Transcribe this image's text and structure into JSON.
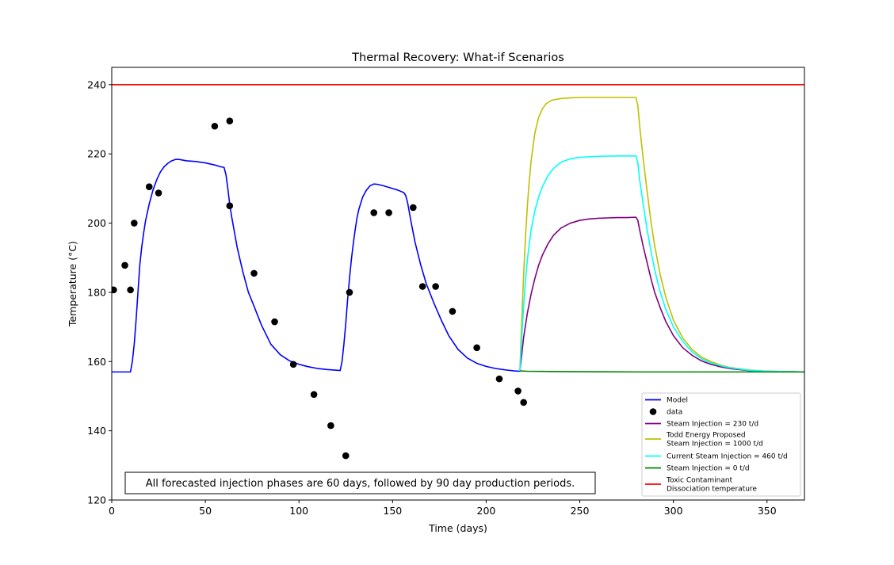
{
  "chart_data": {
    "type": "line",
    "title": "Thermal Recovery: What-if Scenarios",
    "xlabel": "Time (days)",
    "ylabel": "Temperature (°C)",
    "xlim": [
      0,
      370
    ],
    "ylim": [
      120,
      245
    ],
    "xticks": [
      0,
      50,
      100,
      150,
      200,
      250,
      300,
      350
    ],
    "yticks": [
      120,
      140,
      160,
      180,
      200,
      220,
      240
    ],
    "grid": false,
    "legend_position": "lower-right",
    "annotation": "All forecasted injection phases are 60 days, followed by 90 day production periods.",
    "series": [
      {
        "name": "Model",
        "kind": "line",
        "color": "#0000ff",
        "x": [
          0,
          5,
          10,
          11,
          12,
          13,
          14,
          15,
          16,
          17,
          18,
          20,
          22,
          24,
          26,
          28,
          30,
          32,
          34,
          36,
          38,
          40,
          45,
          50,
          55,
          58,
          60,
          61,
          62,
          63,
          64,
          65,
          67,
          70,
          73,
          76,
          80,
          85,
          90,
          95,
          100,
          105,
          110,
          115,
          120,
          122,
          123,
          124,
          125,
          126,
          127,
          128,
          129,
          130,
          131,
          132,
          134,
          136,
          138,
          140,
          142,
          145,
          150,
          153,
          156,
          157,
          158,
          159,
          160,
          162,
          165,
          168,
          172,
          176,
          180,
          185,
          190,
          195,
          200,
          205,
          210,
          215,
          218
        ],
        "y": [
          157,
          157,
          157,
          160,
          165,
          172,
          180,
          188,
          193,
          197,
          200.5,
          205.5,
          209.5,
          212.5,
          214.8,
          216.3,
          217.3,
          218,
          218.4,
          218.4,
          218.2,
          218,
          217.8,
          217.4,
          216.8,
          216.3,
          216.1,
          214,
          210,
          205.5,
          202,
          199,
          193,
          186,
          180,
          176,
          170.5,
          165,
          162,
          160.2,
          159.2,
          158.5,
          158,
          157.7,
          157.5,
          157.4,
          160,
          165,
          171,
          178,
          184,
          189.5,
          194,
          198,
          201.5,
          204,
          207.5,
          209.5,
          210.8,
          211.3,
          211.2,
          210.8,
          210,
          209.5,
          208.8,
          208,
          206,
          203,
          200,
          194.5,
          188,
          182.5,
          177,
          172,
          167.5,
          163.5,
          161,
          159.5,
          158.6,
          158,
          157.6,
          157.3,
          157.2
        ]
      },
      {
        "name": "data",
        "kind": "scatter",
        "color": "#000000",
        "x": [
          1,
          7,
          10,
          12,
          20,
          25,
          55,
          63,
          63,
          76,
          87,
          97,
          108,
          117,
          125,
          127,
          140,
          148,
          161,
          166,
          173,
          182,
          195,
          207,
          217,
          220
        ],
        "y": [
          180.7,
          187.8,
          180.7,
          200,
          210.5,
          208.7,
          228,
          229.5,
          205,
          185.5,
          171.5,
          159.2,
          150.5,
          141.5,
          132.8,
          180,
          203,
          203,
          204.5,
          181.7,
          181.7,
          174.5,
          164,
          155,
          151.5,
          148.2
        ]
      },
      {
        "name": "Steam Injection = 230 t/d",
        "kind": "line",
        "color": "#800080",
        "x": [
          0,
          218,
          219,
          220,
          222,
          224,
          226,
          228,
          230,
          233,
          236,
          240,
          245,
          250,
          255,
          260,
          265,
          270,
          275,
          280,
          281,
          282,
          284,
          286,
          288,
          290,
          293,
          296,
          300,
          305,
          310,
          315,
          320,
          325,
          330,
          340,
          350,
          360,
          370
        ],
        "y": [
          null,
          157.3,
          162,
          167,
          174,
          179.5,
          184,
          187.8,
          190.7,
          194,
          196.5,
          198.6,
          200,
          200.8,
          201.2,
          201.4,
          201.5,
          201.6,
          201.6,
          201.7,
          200.8,
          198,
          193,
          188.5,
          184,
          180,
          175.5,
          171.5,
          167.5,
          164,
          161.8,
          160.2,
          159.2,
          158.5,
          158,
          157.4,
          157.2,
          157.1,
          157
        ]
      },
      {
        "name": "Todd Energy Proposed\nSteam Injection = 1000 t/d",
        "kind": "line",
        "color": "#bfbf00",
        "x": [
          0,
          218,
          219,
          220,
          221,
          222,
          223,
          224,
          226,
          228,
          230,
          232,
          235,
          240,
          245,
          250,
          260,
          270,
          280,
          281,
          282,
          284,
          286,
          288,
          290,
          293,
          296,
          300,
          305,
          310,
          315,
          320,
          325,
          330,
          340,
          350,
          360,
          370
        ],
        "y": [
          null,
          157.3,
          172,
          185,
          196,
          205,
          212,
          218,
          226,
          230.5,
          233,
          234.5,
          235.5,
          236,
          236.2,
          236.3,
          236.3,
          236.3,
          236.3,
          234,
          228,
          218,
          209,
          200.5,
          193.5,
          185,
          178.5,
          172,
          166.8,
          163.5,
          161.3,
          160,
          159,
          158.3,
          157.6,
          157.2,
          157.1,
          157
        ]
      },
      {
        "name": "Current Steam Injection = 460 t/d",
        "kind": "line",
        "color": "#00ffff",
        "x": [
          0,
          218,
          219,
          220,
          221,
          222,
          224,
          226,
          228,
          230,
          233,
          236,
          240,
          245,
          250,
          260,
          270,
          280,
          281,
          282,
          284,
          286,
          288,
          290,
          293,
          296,
          300,
          305,
          310,
          315,
          320,
          325,
          330,
          340,
          350,
          360,
          370
        ],
        "y": [
          null,
          157.3,
          167,
          176,
          183.5,
          189.5,
          198,
          203.5,
          207.5,
          210.5,
          213.7,
          215.8,
          217.6,
          218.6,
          219,
          219.3,
          219.4,
          219.4,
          217.5,
          212.5,
          205,
          198,
          192,
          186.5,
          180,
          175,
          170,
          165.8,
          162.8,
          160.8,
          159.6,
          158.8,
          158.2,
          157.5,
          157.2,
          157.1,
          157
        ]
      },
      {
        "name": "Steam Injection = 0 t/d",
        "kind": "line",
        "color": "#008000",
        "x": [
          0,
          218,
          222,
          230,
          240,
          260,
          280,
          300,
          330,
          370
        ],
        "y": [
          null,
          157.3,
          157.2,
          157.15,
          157.1,
          157.05,
          157,
          157,
          157,
          157
        ]
      },
      {
        "name": "Toxic Contaminant\nDissociation temperature",
        "kind": "line",
        "color": "#ff0000",
        "x": [
          0,
          370
        ],
        "y": [
          240,
          240
        ]
      }
    ]
  }
}
